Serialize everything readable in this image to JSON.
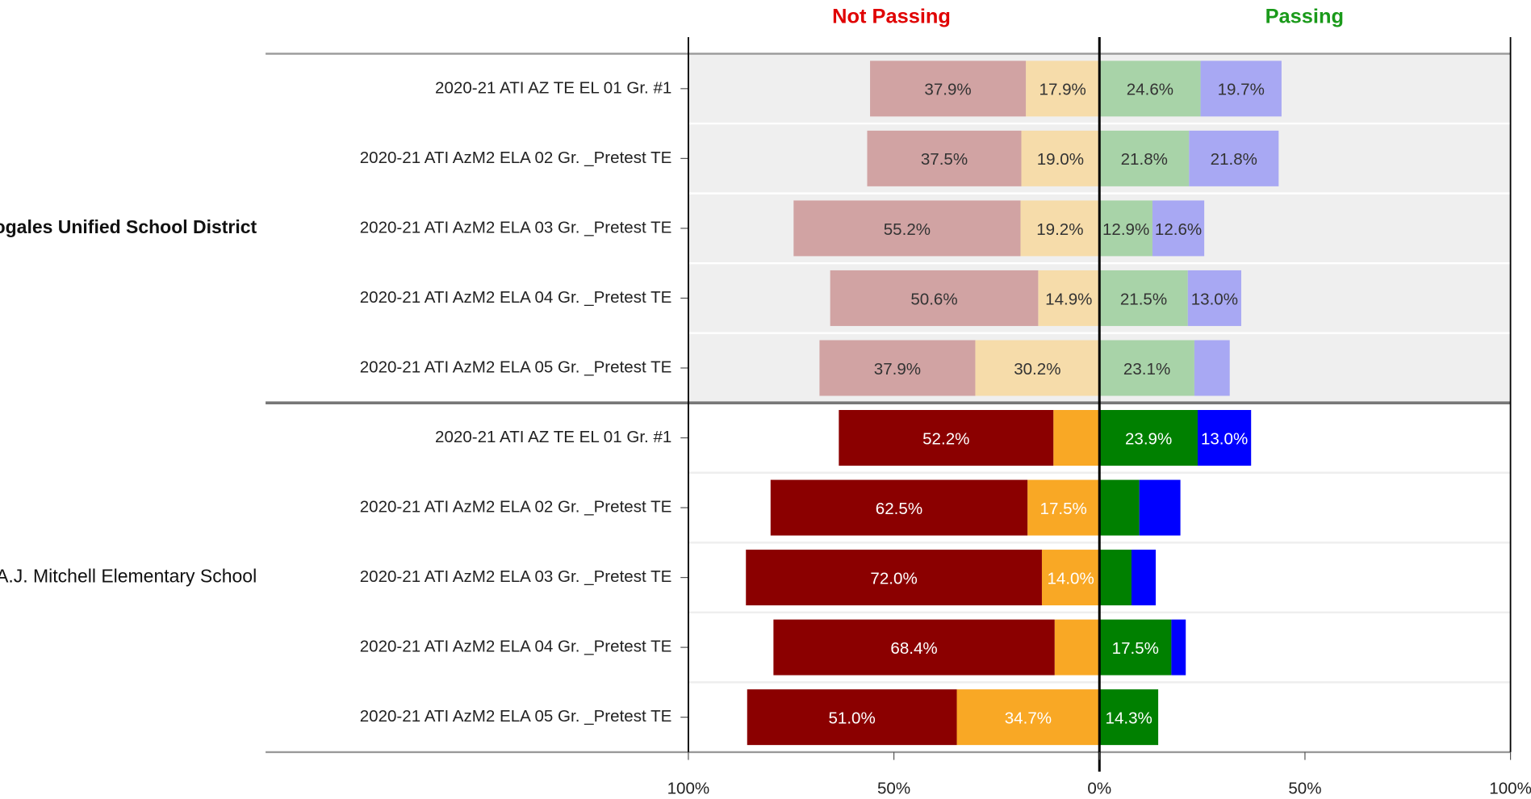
{
  "chart_data": {
    "type": "diverging-stacked-bar",
    "not_passing_label": "Not Passing",
    "not_passing_color": "#e00000",
    "passing_label": "Passing",
    "passing_color": "#1a9a1a",
    "xlim": [
      -100,
      100
    ],
    "xticks": [
      {
        "value": -100,
        "label": "100%"
      },
      {
        "value": -50,
        "label": "50%"
      },
      {
        "value": 0,
        "label": "0%"
      },
      {
        "value": 50,
        "label": "50%"
      },
      {
        "value": 100,
        "label": "100%"
      }
    ],
    "groups": [
      {
        "label": "Nogales Unified School District",
        "bold": true,
        "background": "#efefef",
        "text_color": "#333333",
        "categories": [
          "2020-21 ATI AZ TE EL 01 Gr. #1",
          "2020-21 ATI AzM2 ELA 02 Gr. _Pretest TE",
          "2020-21 ATI AzM2 ELA 03 Gr. _Pretest TE",
          "2020-21 ATI AzM2 ELA 04 Gr. _Pretest TE",
          "2020-21 ATI AzM2 ELA 05 Gr. _Pretest TE"
        ],
        "series": [
          {
            "side": "not_passing",
            "color": "#d1a3a3",
            "values": [
              37.9,
              37.5,
              55.2,
              50.6,
              37.9
            ],
            "value_labels": [
              "37.9%",
              "37.5%",
              "55.2%",
              "50.6%",
              "37.9%"
            ]
          },
          {
            "side": "not_passing",
            "color": "#f6dcaa",
            "values": [
              17.9,
              19.0,
              19.2,
              14.9,
              30.2
            ],
            "value_labels": [
              "17.9%",
              "19.0%",
              "19.2%",
              "14.9%",
              "30.2%"
            ]
          },
          {
            "side": "passing",
            "color": "#a8d3a8",
            "values": [
              24.6,
              21.8,
              12.9,
              21.5,
              23.1
            ],
            "value_labels": [
              "24.6%",
              "21.8%",
              "12.9%",
              "21.5%",
              "23.1%"
            ]
          },
          {
            "side": "passing",
            "color": "#a8a8f3",
            "values": [
              19.7,
              21.8,
              12.6,
              13.0,
              8.6
            ],
            "value_labels": [
              "19.7%",
              "21.8%",
              "12.6%",
              "13.0%",
              null
            ]
          }
        ]
      },
      {
        "label": "A.J. Mitchell Elementary School",
        "bold": false,
        "background": "#ffffff",
        "text_color": "#ffffff",
        "categories": [
          "2020-21 ATI AZ TE EL 01 Gr. #1",
          "2020-21 ATI AzM2 ELA 02 Gr. _Pretest TE",
          "2020-21 ATI AzM2 ELA 03 Gr. _Pretest TE",
          "2020-21 ATI AzM2 ELA 04 Gr. _Pretest TE",
          "2020-21 ATI AzM2 ELA 05 Gr. _Pretest TE"
        ],
        "series": [
          {
            "side": "not_passing",
            "color": "#8b0000",
            "values": [
              52.2,
              62.5,
              72.0,
              68.4,
              51.0
            ],
            "value_labels": [
              "52.2%",
              "62.5%",
              "72.0%",
              "68.4%",
              "51.0%"
            ]
          },
          {
            "side": "not_passing",
            "color": "#f9a825",
            "values": [
              11.2,
              17.5,
              14.0,
              10.9,
              34.7
            ],
            "value_labels": [
              null,
              "17.5%",
              "14.0%",
              null,
              "34.7%"
            ]
          },
          {
            "side": "passing",
            "color": "#008000",
            "values": [
              23.9,
              9.7,
              7.8,
              17.5,
              14.3
            ],
            "value_labels": [
              "23.9%",
              null,
              null,
              "17.5%",
              "14.3%"
            ]
          },
          {
            "side": "passing",
            "color": "#0000ff",
            "values": [
              13.0,
              10.0,
              5.9,
              3.5,
              0
            ],
            "value_labels": [
              "13.0%",
              null,
              null,
              null,
              null
            ]
          }
        ]
      }
    ]
  }
}
